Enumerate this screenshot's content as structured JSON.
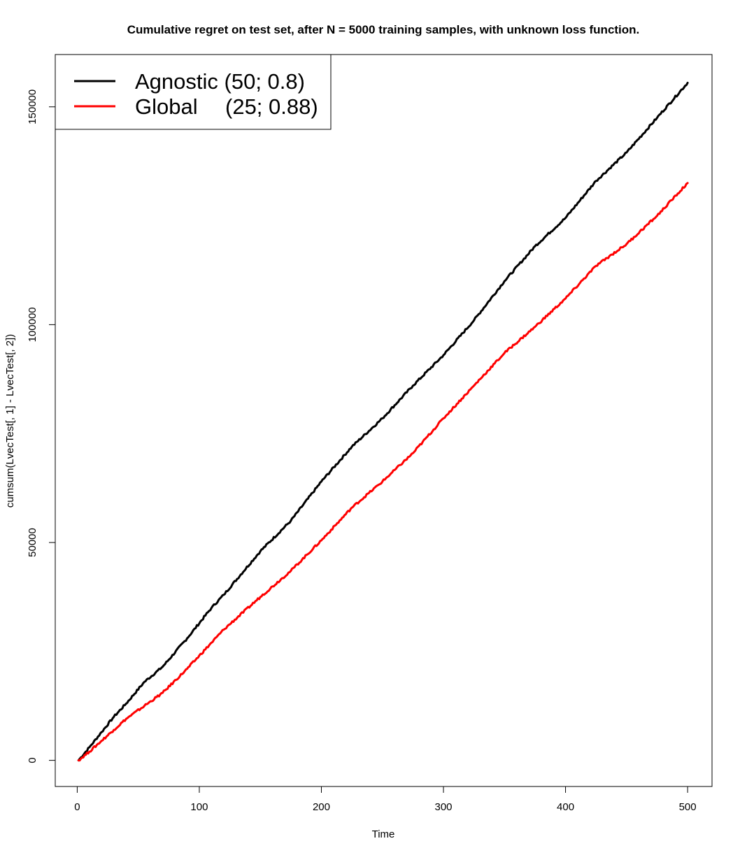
{
  "chart_data": {
    "type": "line",
    "title": "Cumulative regret on test set, after N = 5000 training samples, with unknown loss function.",
    "xlabel": "Time",
    "ylabel": "cumsum(LvecTest[, 1] - LvecTest[, 2])",
    "xlim": [
      -18,
      520
    ],
    "ylim": [
      -6000,
      162000
    ],
    "x_ticks": [
      0,
      100,
      200,
      300,
      400,
      500
    ],
    "x_tick_labels": [
      "0",
      "100",
      "200",
      "300",
      "400",
      "500"
    ],
    "y_ticks": [
      0,
      50000,
      100000,
      150000
    ],
    "y_tick_labels": [
      "0",
      "50000",
      "100000",
      "150000"
    ],
    "grid": false,
    "legend_position": "top-left",
    "series": [
      {
        "name": "Agnostic (50; 0.8)",
        "legend_label": "Agnostic (50; 0.8)",
        "color": "#000000",
        "x": [
          1,
          10,
          20,
          30,
          40,
          55,
          70,
          90,
          110,
          120,
          150,
          175,
          200,
          225,
          250,
          275,
          300,
          325,
          350,
          375,
          400,
          425,
          450,
          475,
          500
        ],
        "y": [
          0,
          3000,
          6500,
          10000,
          13000,
          18000,
          21500,
          28000,
          35000,
          38000,
          48000,
          55000,
          64000,
          72000,
          78500,
          86000,
          93000,
          101000,
          110000,
          118000,
          124500,
          133000,
          139500,
          147500,
          155500
        ]
      },
      {
        "name": "Global (25; 0.88)",
        "legend_label_name": "Global",
        "legend_label_params": "(25; 0.88)",
        "color": "#ff0000",
        "x": [
          1,
          10,
          20,
          30,
          40,
          55,
          70,
          90,
          110,
          120,
          150,
          175,
          200,
          225,
          250,
          275,
          300,
          325,
          350,
          375,
          400,
          425,
          450,
          475,
          500
        ],
        "y": [
          0,
          2000,
          4500,
          7000,
          9500,
          12500,
          15500,
          21000,
          27000,
          30000,
          37500,
          43500,
          50500,
          58000,
          64000,
          70500,
          78500,
          86000,
          93500,
          99500,
          106000,
          113500,
          118500,
          125000,
          132500
        ]
      }
    ]
  }
}
